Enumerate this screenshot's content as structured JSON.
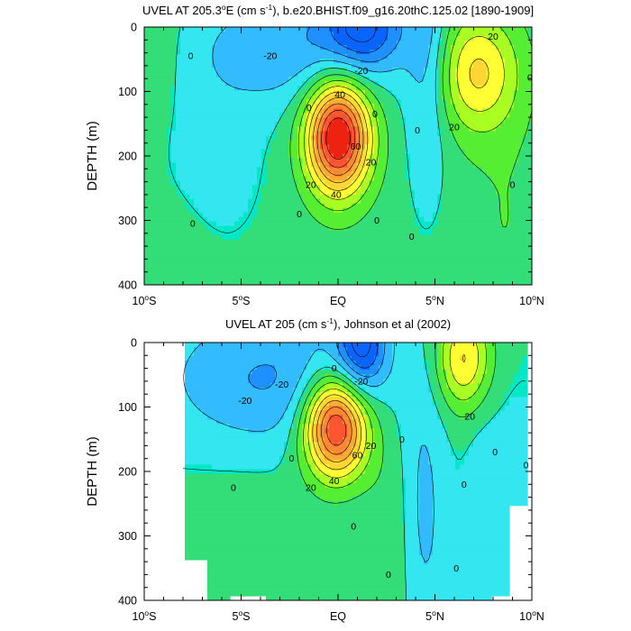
{
  "chart_data": [
    {
      "type": "contour",
      "title": "UVEL AT 205.3°E (cm s-1), b.e20.BHIST.f09_g16.20thC.125.02 [1890-1909]",
      "title_parts": {
        "pre": "UVEL AT 205.3",
        "deg": "o",
        "mid": "E (cm s",
        "sup": "-1",
        "post": "), b.e20.BHIST.f09_g16.20thC.125.02 [1890-1909]"
      },
      "ylabel": "DEPTH (m)",
      "xlim": [
        -10,
        10
      ],
      "ylim": [
        400,
        0
      ],
      "x_ticks": [
        {
          "v": -10,
          "label": "10",
          "suffix": "S",
          "deg": "o"
        },
        {
          "v": -5,
          "label": "5",
          "suffix": "S",
          "deg": "o"
        },
        {
          "v": 0,
          "label": "EQ",
          "suffix": "",
          "deg": ""
        },
        {
          "v": 5,
          "label": "5",
          "suffix": "N",
          "deg": "o"
        },
        {
          "v": 10,
          "label": "10",
          "suffix": "N",
          "deg": "o"
        }
      ],
      "y_ticks": [
        0,
        100,
        200,
        300,
        400
      ],
      "contour_interval": 10,
      "contour_labels": [
        {
          "x": -7.6,
          "y": 45,
          "t": "0"
        },
        {
          "x": -3.5,
          "y": 45,
          "t": "-20"
        },
        {
          "x": 1.2,
          "y": 68,
          "t": "-20"
        },
        {
          "x": 8.0,
          "y": 15,
          "t": "20"
        },
        {
          "x": 6.0,
          "y": 155,
          "t": "20"
        },
        {
          "x": 9.9,
          "y": 78,
          "t": "0"
        },
        {
          "x": 1.9,
          "y": 135,
          "t": "0"
        },
        {
          "x": 4.1,
          "y": 160,
          "t": "0"
        },
        {
          "x": 0.1,
          "y": 105,
          "t": "40"
        },
        {
          "x": -1.5,
          "y": 125,
          "t": "0"
        },
        {
          "x": 0.9,
          "y": 185,
          "t": "60"
        },
        {
          "x": 1.7,
          "y": 210,
          "t": "20"
        },
        {
          "x": -1.4,
          "y": 245,
          "t": "20"
        },
        {
          "x": -0.1,
          "y": 260,
          "t": "40"
        },
        {
          "x": -2.0,
          "y": 290,
          "t": "0"
        },
        {
          "x": 2.0,
          "y": 300,
          "t": "0"
        },
        {
          "x": 3.8,
          "y": 325,
          "t": "0"
        },
        {
          "x": 9.0,
          "y": 245,
          "t": "0"
        },
        {
          "x": -7.5,
          "y": 305,
          "t": "0"
        }
      ],
      "series": [
        {
          "name": "",
          "features": []
        }
      ]
    },
    {
      "type": "contour",
      "title": "UVEL AT 205 (cm s-1), Johnson et al (2002)",
      "title_parts": {
        "pre": "UVEL AT 205 (cm s",
        "deg": "",
        "mid": "",
        "sup": "-1",
        "post": "), Johnson et al (2002)"
      },
      "ylabel": "DEPTH (m)",
      "xlim": [
        -10,
        10
      ],
      "ylim": [
        400,
        0
      ],
      "data_extent_x": [
        -8,
        9.8
      ],
      "x_ticks": [
        {
          "v": -10,
          "label": "10",
          "suffix": "S",
          "deg": "o"
        },
        {
          "v": -5,
          "label": "5",
          "suffix": "S",
          "deg": "o"
        },
        {
          "v": 0,
          "label": "EQ",
          "suffix": "",
          "deg": ""
        },
        {
          "v": 5,
          "label": "5",
          "suffix": "N",
          "deg": "o"
        },
        {
          "v": 10,
          "label": "10",
          "suffix": "N",
          "deg": "o"
        }
      ],
      "y_ticks": [
        0,
        100,
        200,
        300,
        400
      ],
      "contour_interval": 10,
      "contour_labels": [
        {
          "x": -4.8,
          "y": 90,
          "t": "-20"
        },
        {
          "x": -2.9,
          "y": 65,
          "t": "-20"
        },
        {
          "x": -0.2,
          "y": 40,
          "t": "0"
        },
        {
          "x": 1.2,
          "y": 60,
          "t": "-20"
        },
        {
          "x": 6.8,
          "y": 115,
          "t": "20"
        },
        {
          "x": 3.3,
          "y": 150,
          "t": "0"
        },
        {
          "x": 1.7,
          "y": 160,
          "t": "20"
        },
        {
          "x": 1.0,
          "y": 175,
          "t": "60"
        },
        {
          "x": -2.4,
          "y": 180,
          "t": "0"
        },
        {
          "x": -0.2,
          "y": 215,
          "t": "40"
        },
        {
          "x": -1.4,
          "y": 225,
          "t": "20"
        },
        {
          "x": -5.4,
          "y": 225,
          "t": "0"
        },
        {
          "x": 0.8,
          "y": 285,
          "t": "0"
        },
        {
          "x": 8.1,
          "y": 170,
          "t": "0"
        },
        {
          "x": 9.7,
          "y": 190,
          "t": "0"
        },
        {
          "x": 6.5,
          "y": 220,
          "t": "0"
        },
        {
          "x": 2.6,
          "y": 360,
          "t": "0"
        },
        {
          "x": 6.1,
          "y": 350,
          "t": "0"
        }
      ],
      "series": [
        {
          "name": "",
          "features": []
        }
      ]
    }
  ],
  "colors": {
    "c_m40": "#0a64ff",
    "c_m30": "#1e90ff",
    "c_m20": "#33bbff",
    "c_m10": "#33e6f0",
    "c_0": "#00e8c8",
    "c_p0": "#33dd77",
    "c_p10": "#55ee33",
    "c_p20": "#aaff22",
    "c_p30": "#ffff33",
    "c_p40": "#ffd633",
    "c_p50": "#ffaa33",
    "c_p60": "#ff8833",
    "c_p70": "#ff5533",
    "c_p80": "#ee2211"
  }
}
